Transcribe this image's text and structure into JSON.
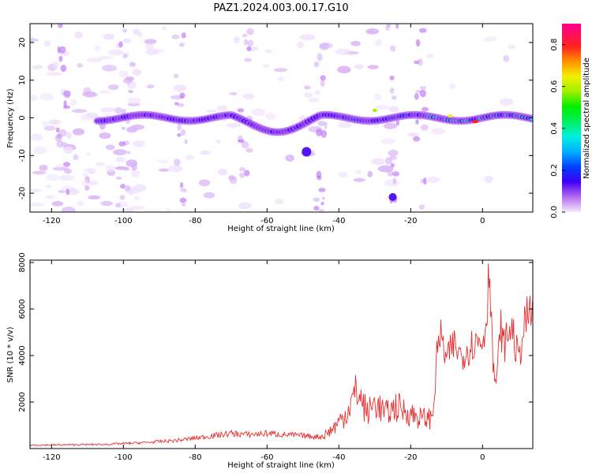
{
  "figure_title": "PAZ1.2024.003.00.17.G10",
  "colors": {
    "snr_line": "#e83030",
    "axis": "#000000"
  },
  "chart_data": [
    {
      "type": "heatmap",
      "title": "",
      "xlabel": "Height of straight line (km)",
      "ylabel": "Frequency (Hz)",
      "xlim": [
        -126,
        14
      ],
      "ylim": [
        -25,
        25
      ],
      "xticks": [
        -120,
        -100,
        -80,
        -60,
        -40,
        -20,
        0
      ],
      "yticks": [
        -20,
        -10,
        0,
        10,
        20
      ],
      "colorbar": {
        "label": "Normalized spectral amplitude",
        "range": [
          0,
          0.9
        ],
        "ticks": [
          0.0,
          0.2,
          0.4,
          0.6,
          0.8
        ],
        "colormap": "gist_ncar-like (white-purple-blue-cyan-green-yellow-orange-red-magenta)"
      },
      "features": [
        {
          "x": [
            -107,
            14
          ],
          "y_center": 0,
          "description": "main signal band near 0 Hz with rising amplitude toward 0 km"
        },
        {
          "x": -2,
          "y": -1,
          "amplitude": 0.88,
          "description": "peak (red)"
        }
      ]
    },
    {
      "type": "line",
      "title": "",
      "xlabel": "Height of straight line (km)",
      "ylabel": "SNR (10 * v/v)",
      "xlim": [
        -126,
        14
      ],
      "ylim": [
        0,
        8100
      ],
      "xticks": [
        -120,
        -100,
        -80,
        -60,
        -40,
        -20,
        0
      ],
      "yticks": [
        2000,
        4000,
        6000,
        8000
      ],
      "series": [
        {
          "x": [
            -126,
            -115,
            -105,
            -95,
            -85,
            -80,
            -75,
            -70,
            -65,
            -60,
            -55,
            -50,
            -45,
            -42,
            -38,
            -35,
            -32,
            -30,
            -27,
            -24,
            -20,
            -17,
            -14,
            -13,
            -12,
            -10,
            -8,
            -6,
            -4,
            -2,
            0,
            1,
            2,
            3,
            4,
            5,
            6,
            8,
            10,
            12,
            14
          ],
          "values": [
            150,
            160,
            180,
            250,
            350,
            450,
            550,
            650,
            600,
            650,
            600,
            550,
            500,
            800,
            1500,
            2500,
            1500,
            2000,
            1500,
            1800,
            1500,
            1300,
            1300,
            3500,
            5000,
            3800,
            4500,
            4000,
            4300,
            4600,
            4600,
            5500,
            8100,
            3200,
            2900,
            5300,
            4400,
            5300,
            3800,
            5500,
            5900
          ]
        }
      ]
    }
  ]
}
